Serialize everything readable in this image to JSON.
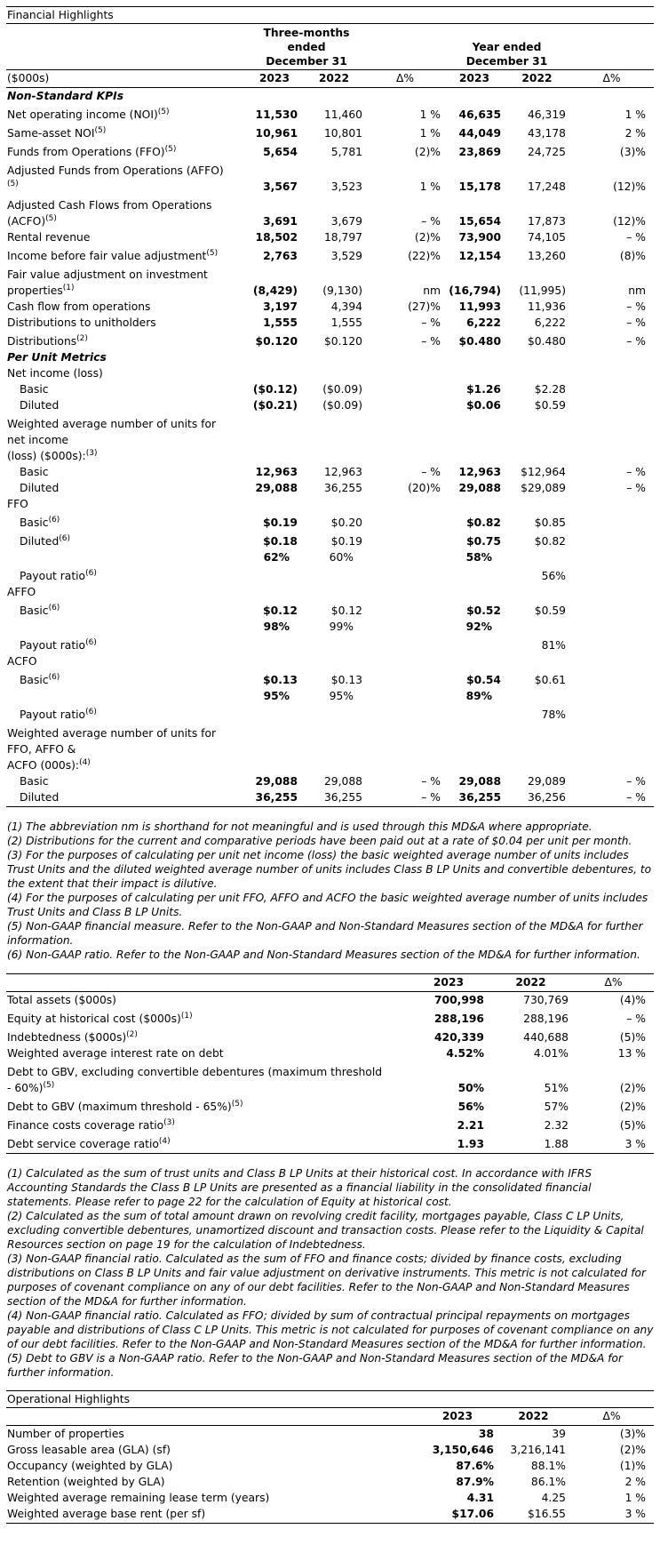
{
  "financial": {
    "title": "Financial Highlights",
    "header": {
      "units": "($000s)",
      "three_months": "Three-months\nended\nDecember 31",
      "year": "Year ended\nDecember 31",
      "cols": [
        "2023",
        "2022",
        "Δ%",
        "2023",
        "2022",
        "Δ%"
      ]
    },
    "rows": [
      {
        "type": "section",
        "label": "Non-Standard KPIs",
        "values": [
          "",
          "",
          "",
          "",
          "",
          ""
        ]
      },
      {
        "type": "row",
        "label": "Net operating income (NOI)",
        "sup": "(5)",
        "values": [
          "11,530",
          "11,460",
          "1 %",
          "46,635",
          "46,319",
          "1 %"
        ]
      },
      {
        "type": "row",
        "label": "Same-asset NOI",
        "sup": "(5)",
        "values": [
          "10,961",
          "10,801",
          "1 %",
          "44,049",
          "43,178",
          "2 %"
        ]
      },
      {
        "type": "row",
        "label": "Funds from Operations (FFO)",
        "sup": "(5)",
        "values": [
          "5,654",
          "5,781",
          "(2)%",
          "23,869",
          "24,725",
          "(3)%"
        ]
      },
      {
        "type": "row",
        "label": "Adjusted Funds from Operations (AFFO)\n",
        "sup": "(5)",
        "values": [
          "3,567",
          "3,523",
          "1 %",
          "15,178",
          "17,248",
          "(12)%"
        ]
      },
      {
        "type": "row",
        "label": "Adjusted Cash Flows from Operations\n(ACFO)",
        "sup": "(5)",
        "values": [
          "3,691",
          "3,679",
          "– %",
          "15,654",
          "17,873",
          "(12)%"
        ]
      },
      {
        "type": "blank",
        "label": "",
        "values": [
          "",
          "",
          "",
          "",
          "",
          ""
        ]
      },
      {
        "type": "row",
        "label": "Rental revenue",
        "values": [
          "18,502",
          "18,797",
          "(2)%",
          "73,900",
          "74,105",
          "– %"
        ]
      },
      {
        "type": "row",
        "label": "Income before fair value adjustment",
        "sup": "(5)",
        "values": [
          "2,763",
          "3,529",
          "(22)%",
          "12,154",
          "13,260",
          "(8)%"
        ]
      },
      {
        "type": "row",
        "label": "Fair value adjustment on investment\nproperties",
        "sup": "(1)",
        "values": [
          "(8,429)",
          "(9,130)",
          "nm",
          "(16,794)",
          "(11,995)",
          "nm"
        ]
      },
      {
        "type": "row",
        "label": "Cash flow from operations",
        "values": [
          "3,197",
          "4,394",
          "(27)%",
          "11,993",
          "11,936",
          "– %"
        ]
      },
      {
        "type": "row",
        "label": "Distributions to unitholders",
        "values": [
          "1,555",
          "1,555",
          "– %",
          "6,222",
          "6,222",
          "– %"
        ]
      },
      {
        "type": "row",
        "label": "Distributions",
        "sup": "(2)",
        "values": [
          "$0.120",
          "$0.120",
          "– %",
          "$0.480",
          "$0.480",
          "– %"
        ]
      },
      {
        "type": "section",
        "label": "Per Unit Metrics",
        "values": [
          "",
          "",
          "",
          "",
          "",
          ""
        ]
      },
      {
        "type": "row",
        "label": "Net income (loss)",
        "values": [
          "",
          "",
          "",
          "",
          "",
          ""
        ]
      },
      {
        "type": "sub",
        "label": "Basic",
        "values": [
          "($0.12)",
          "($0.09)",
          "",
          "$1.26",
          "$2.28",
          ""
        ]
      },
      {
        "type": "sub",
        "label": "Diluted",
        "values": [
          "($0.21)",
          "($0.09)",
          "",
          "$0.06",
          "$0.59",
          ""
        ]
      },
      {
        "type": "row",
        "label": "Weighted average number of units for\nnet income\n(loss) ($000s):",
        "sup": "(3)",
        "values": [
          "",
          "",
          "",
          "",
          "",
          ""
        ]
      },
      {
        "type": "sub",
        "label": "Basic",
        "values": [
          "12,963",
          "12,963",
          "– %",
          "12,963",
          "$12,964",
          "– %"
        ]
      },
      {
        "type": "sub",
        "label": "Diluted",
        "values": [
          "29,088",
          "36,255",
          "(20)%",
          "29,088",
          "$29,089",
          "– %"
        ]
      },
      {
        "type": "row",
        "label": "FFO",
        "values": [
          "",
          "",
          "",
          "",
          "",
          ""
        ]
      },
      {
        "type": "sub",
        "label": "Basic",
        "sup": "(6)",
        "values": [
          "$0.19",
          "$0.20",
          "",
          "$0.82",
          "$0.85",
          ""
        ]
      },
      {
        "type": "sub",
        "label": "Diluted",
        "sup": "(6)",
        "values": [
          "$0.18",
          "$0.19",
          "",
          "$0.75",
          "$0.82",
          ""
        ]
      },
      {
        "type": "payout",
        "label": "",
        "values": [
          "62%",
          "60%",
          "",
          "58%",
          "",
          ""
        ]
      },
      {
        "type": "sub",
        "label": "Payout ratio",
        "sup": "(6)",
        "values": [
          "",
          "",
          "",
          "",
          "56%",
          ""
        ]
      },
      {
        "type": "row",
        "label": "AFFO",
        "values": [
          "",
          "",
          "",
          "",
          "",
          ""
        ]
      },
      {
        "type": "sub",
        "label": "Basic",
        "sup": "(6)",
        "values": [
          "$0.12",
          "$0.12",
          "",
          "$0.52",
          "$0.59",
          ""
        ]
      },
      {
        "type": "payout",
        "label": "",
        "values": [
          "98%",
          "99%",
          "",
          "92%",
          "",
          ""
        ]
      },
      {
        "type": "sub",
        "label": "Payout ratio",
        "sup": "(6)",
        "values": [
          "",
          "",
          "",
          "",
          "81%",
          ""
        ]
      },
      {
        "type": "row",
        "label": "ACFO",
        "values": [
          "",
          "",
          "",
          "",
          "",
          ""
        ]
      },
      {
        "type": "sub",
        "label": "Basic",
        "sup": "(6)",
        "values": [
          "$0.13",
          "$0.13",
          "",
          "$0.54",
          "$0.61",
          ""
        ]
      },
      {
        "type": "payout",
        "label": "",
        "values": [
          "95%",
          "95%",
          "",
          "89%",
          "",
          ""
        ]
      },
      {
        "type": "sub",
        "label": "Payout ratio",
        "sup": "(6)",
        "values": [
          "",
          "",
          "",
          "",
          "78%",
          ""
        ]
      },
      {
        "type": "row",
        "label": "Weighted average number of units for\nFFO, AFFO &\nACFO (000s):",
        "sup": "(4)",
        "values": [
          "",
          "",
          "",
          "",
          "",
          ""
        ]
      },
      {
        "type": "sub",
        "label": "Basic",
        "values": [
          "29,088",
          "29,088",
          "– %",
          "29,088",
          "29,089",
          "– %"
        ]
      },
      {
        "type": "sub",
        "label": "Diluted",
        "values": [
          "36,255",
          "36,255",
          "– %",
          "36,255",
          "36,256",
          "– %"
        ]
      }
    ],
    "footnotes": [
      "(1) The abbreviation nm is shorthand for not meaningful and is used through this MD&A where appropriate.",
      "(2) Distributions for the current and comparative periods have been paid out at a rate of $0.04 per unit per month.",
      "(3) For the purposes of calculating per unit net income (loss) the basic weighted average number of units includes Trust Units and the diluted weighted average number of units includes Class B LP Units and convertible debentures, to the extent that their impact is dilutive.",
      "(4) For the purposes of calculating per unit FFO, AFFO and ACFO the basic weighted average number of units includes Trust Units and Class B LP Units.",
      "(5) Non-GAAP financial measure. Refer to the Non-GAAP and Non-Standard Measures section of the MD&A for further information.",
      "(6) Non-GAAP ratio. Refer to the Non-GAAP and Non-Standard Measures section of the MD&A for further information."
    ]
  },
  "balance": {
    "cols": [
      "2023",
      "2022",
      "Δ%"
    ],
    "rows": [
      {
        "type": "row",
        "label": "Total assets ($000s)",
        "values": [
          "700,998",
          "730,769",
          "(4)%"
        ]
      },
      {
        "type": "row",
        "label": "Equity at historical cost ($000s)",
        "sup": "(1)",
        "values": [
          "288,196",
          "288,196",
          "– %"
        ]
      },
      {
        "type": "row",
        "label": "Indebtedness ($000s)",
        "sup": "(2)",
        "values": [
          "420,339",
          "440,688",
          "(5)%"
        ]
      },
      {
        "type": "row",
        "label": "Weighted average interest rate on debt",
        "values": [
          "4.52%",
          "4.01%",
          "13 %"
        ]
      },
      {
        "type": "row",
        "label": "Debt to GBV, excluding convertible debentures (maximum threshold\n- 60%)",
        "sup": "(5)",
        "values": [
          "50%",
          "51%",
          "(2)%"
        ]
      },
      {
        "type": "row",
        "label": "Debt to GBV (maximum threshold - 65%)",
        "sup": "(5)",
        "values": [
          "56%",
          "57%",
          "(2)%"
        ]
      },
      {
        "type": "row",
        "label": "Finance costs coverage ratio",
        "sup": "(3)",
        "values": [
          "2.21",
          "2.32",
          "(5)%"
        ]
      },
      {
        "type": "row",
        "label": "Debt service coverage ratio",
        "sup": "(4)",
        "values": [
          "1.93",
          "1.88",
          "3 %"
        ]
      }
    ],
    "footnotes": [
      "(1) Calculated as the sum of trust units and Class B LP Units at their historical cost. In accordance with IFRS Accounting Standards the Class B LP Units are presented as a financial liability in the consolidated financial statements. Please refer to page 22 for the calculation of Equity at historical cost.",
      "(2) Calculated as the sum of total amount drawn on revolving credit facility, mortgages payable, Class C LP Units, excluding convertible debentures, unamortized discount and transaction costs. Please refer to the Liquidity & Capital Resources section on page 19 for the calculation of Indebtedness.",
      "(3) Non-GAAP financial ratio. Calculated as the sum of FFO and finance costs; divided by finance costs, excluding distributions on Class B LP Units and fair value adjustment on derivative instruments. This metric is not calculated for purposes of covenant compliance on any of our debt facilities. Refer to the Non-GAAP and Non-Standard Measures section of the MD&A for further information.",
      "(4) Non-GAAP financial ratio. Calculated as FFO; divided by sum of contractual principal repayments on mortgages payable and distributions of Class C LP Units. This metric is not calculated for purposes of covenant compliance on any of our debt facilities. Refer to the Non-GAAP and Non-Standard Measures section of the MD&A for further information.",
      "(5) Debt to GBV is a Non-GAAP ratio. Refer to the Non-GAAP and Non-Standard Measures section of the MD&A for further information."
    ]
  },
  "operational": {
    "title": "Operational Highlights",
    "cols": [
      "2023",
      "2022",
      "Δ%"
    ],
    "rows": [
      {
        "type": "row",
        "label": "Number of properties",
        "values": [
          "38",
          "39",
          "(3)%"
        ]
      },
      {
        "type": "row",
        "label": "Gross leasable area (GLA) (sf)",
        "values": [
          "3,150,646",
          "3,216,141",
          "(2)%"
        ]
      },
      {
        "type": "row",
        "label": "Occupancy (weighted by GLA)",
        "values": [
          "87.6%",
          "88.1%",
          "(1)%"
        ]
      },
      {
        "type": "row",
        "label": "Retention (weighted by GLA)",
        "values": [
          "87.9%",
          "86.1%",
          "2 %"
        ]
      },
      {
        "type": "row",
        "label": "Weighted average remaining lease term (years)",
        "values": [
          "4.31",
          "4.25",
          "1 %"
        ]
      },
      {
        "type": "row",
        "label": "Weighted average base rent (per sf)",
        "values": [
          "$17.06",
          "$16.55",
          "3 %"
        ]
      }
    ]
  }
}
